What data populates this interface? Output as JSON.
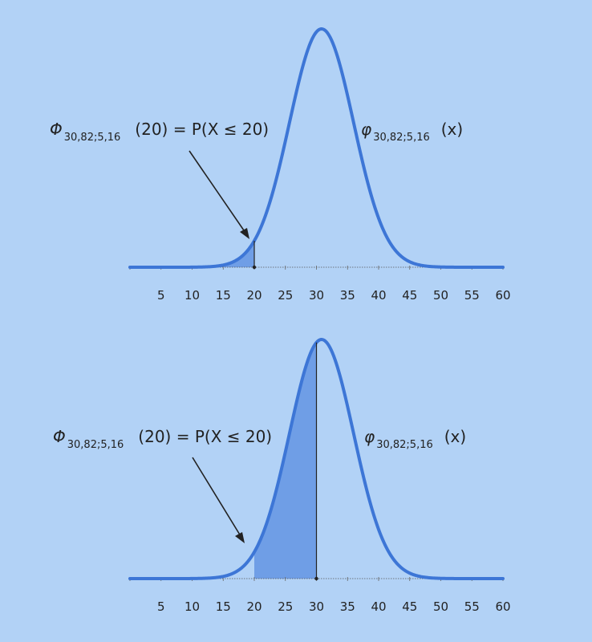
{
  "chart_data": [
    {
      "type": "area",
      "title": "",
      "distribution": "normal",
      "mean": 30.82,
      "sd": 5.16,
      "xlim": [
        0,
        60
      ],
      "xticks": [
        5,
        10,
        15,
        20,
        25,
        30,
        35,
        40,
        45,
        50,
        55,
        60
      ],
      "shade_upper_limit": 20,
      "cdf_label": {
        "symbol": "Φ",
        "subscript": "30,82;5,16",
        "argument": "(20) = P(X ≤ 20)"
      },
      "pdf_label": {
        "symbol": "φ",
        "subscript": "30,82;5,16",
        "argument": "(x)"
      }
    },
    {
      "type": "area",
      "title": "",
      "distribution": "normal",
      "mean": 30.82,
      "sd": 5.16,
      "xlim": [
        0,
        60
      ],
      "xticks": [
        5,
        10,
        15,
        20,
        25,
        30,
        35,
        40,
        45,
        50,
        55,
        60
      ],
      "shade_lower_limit": 20,
      "shade_upper_limit": 30,
      "cdf_label": {
        "symbol": "Φ",
        "subscript": "30,82;5,16",
        "argument": "(20) = P(X ≤ 20)"
      },
      "pdf_label": {
        "symbol": "φ",
        "subscript": "30,82;5,16",
        "argument": "(x)"
      }
    }
  ],
  "colors": {
    "background": "#b2d2f6",
    "curve": "#3d76d6",
    "shade": "#6f9ee6",
    "text": "#222222"
  }
}
